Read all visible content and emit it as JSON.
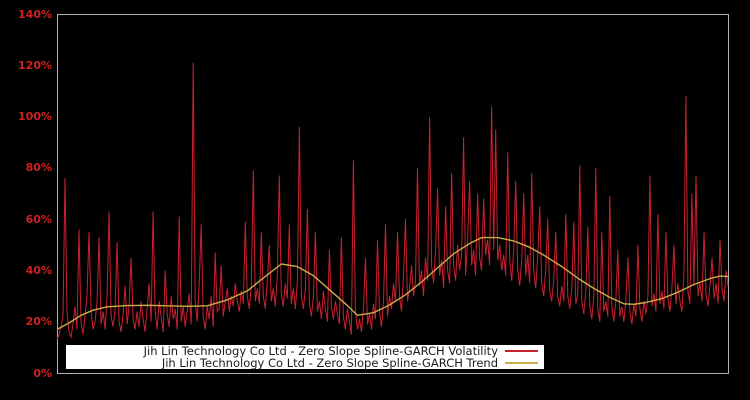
{
  "figure": {
    "background_color": "#000000",
    "frame_color": "#b0b0b0",
    "title": ""
  },
  "y_axis": {
    "tick_labels": [
      "0%",
      "20%",
      "40%",
      "60%",
      "80%",
      "100%",
      "120%",
      "140%"
    ],
    "tick_color": "#cc2222",
    "min": 0,
    "max": 140,
    "step": 20
  },
  "x_axis": {
    "tick_labels": []
  },
  "legend": {
    "background": "#ffffff",
    "items": [
      {
        "label": "Jih Lin Technology Co Ltd - Zero Slope Spline-GARCH Volatility",
        "color": "#cb2030"
      },
      {
        "label": "Jih Lin Technology Co Ltd - Zero Slope Spline-GARCH Trend",
        "color": "#c8ad49"
      }
    ]
  },
  "chart_data": {
    "type": "line",
    "title": "",
    "xlabel": "",
    "ylabel": "",
    "ylim": [
      0,
      140
    ],
    "y_tick_step": 20,
    "grid": false,
    "legend_position": "lower center",
    "series": [
      {
        "name": "Jih Lin Technology Co Ltd - Zero Slope Spline-GARCH Volatility",
        "color": "#cb2030",
        "unit": "%",
        "values": [
          13,
          15,
          18,
          22,
          76,
          24,
          16,
          14,
          19,
          26,
          17,
          56,
          20,
          15,
          22,
          30,
          55,
          24,
          17,
          20,
          28,
          53,
          19,
          24,
          17,
          30,
          63,
          22,
          18,
          25,
          51,
          20,
          16,
          23,
          34,
          19,
          26,
          45,
          21,
          17,
          24,
          18,
          28,
          21,
          16,
          25,
          35,
          20,
          63,
          24,
          17,
          28,
          22,
          16,
          40,
          23,
          18,
          30,
          21,
          25,
          17,
          61,
          20,
          26,
          18,
          24,
          31,
          19,
          121,
          28,
          20,
          35,
          58,
          22,
          17,
          26,
          21,
          30,
          18,
          47,
          24,
          25,
          42,
          22,
          28,
          33,
          24,
          30,
          26,
          35,
          28,
          24,
          32,
          27,
          59,
          30,
          25,
          34,
          79,
          28,
          33,
          27,
          55,
          30,
          25,
          36,
          50,
          28,
          33,
          26,
          38,
          77,
          31,
          26,
          35,
          29,
          58,
          27,
          33,
          25,
          36,
          96,
          30,
          25,
          33,
          64,
          27,
          22,
          30,
          55,
          24,
          28,
          21,
          32,
          25,
          20,
          48,
          26,
          21,
          28,
          23,
          19,
          53,
          22,
          17,
          25,
          20,
          15,
          83,
          24,
          17,
          21,
          16,
          26,
          45,
          19,
          23,
          17,
          27,
          21,
          52,
          24,
          18,
          28,
          58,
          22,
          30,
          25,
          35,
          28,
          55,
          30,
          24,
          38,
          60,
          28,
          33,
          42,
          30,
          36,
          80,
          34,
          40,
          30,
          45,
          36,
          100,
          42,
          35,
          48,
          72,
          38,
          44,
          33,
          65,
          40,
          35,
          78,
          42,
          36,
          50,
          40,
          46,
          92,
          38,
          52,
          75,
          42,
          48,
          38,
          70,
          45,
          40,
          68,
          46,
          52,
          42,
          104,
          48,
          95,
          44,
          50,
          40,
          46,
          38,
          86,
          44,
          36,
          48,
          75,
          40,
          34,
          44,
          70,
          38,
          46,
          35,
          78,
          40,
          33,
          45,
          65,
          35,
          30,
          40,
          60,
          32,
          28,
          36,
          55,
          30,
          26,
          34,
          28,
          62,
          30,
          25,
          33,
          59,
          27,
          31,
          81,
          28,
          23,
          32,
          57,
          26,
          21,
          30,
          80,
          25,
          20,
          55,
          24,
          28,
          22,
          69,
          26,
          20,
          28,
          48,
          22,
          26,
          20,
          28,
          45,
          24,
          19,
          27,
          22,
          50,
          25,
          20,
          28,
          23,
          30,
          77,
          26,
          31,
          24,
          62,
          27,
          32,
          25,
          55,
          29,
          24,
          33,
          50,
          27,
          35,
          28,
          24,
          38,
          108,
          32,
          27,
          70,
          34,
          77,
          30,
          35,
          28,
          55,
          31,
          26,
          34,
          45,
          29,
          35,
          27,
          52,
          33,
          28,
          40,
          34
        ]
      },
      {
        "name": "Jih Lin Technology Co Ltd - Zero Slope Spline-GARCH Trend",
        "color": "#c8ad49",
        "unit": "%",
        "points": [
          [
            0,
            17
          ],
          [
            6,
            19.5
          ],
          [
            12,
            22.5
          ],
          [
            18,
            24.5
          ],
          [
            25,
            25.8
          ],
          [
            35,
            26.3
          ],
          [
            45,
            26.4
          ],
          [
            55,
            26.2
          ],
          [
            65,
            26
          ],
          [
            75,
            26.2
          ],
          [
            85,
            28.5
          ],
          [
            95,
            32
          ],
          [
            103,
            37
          ],
          [
            112,
            42.5
          ],
          [
            120,
            41.5
          ],
          [
            128,
            38
          ],
          [
            136,
            32.5
          ],
          [
            144,
            27
          ],
          [
            150,
            22.5
          ],
          [
            158,
            23.5
          ],
          [
            166,
            26.5
          ],
          [
            174,
            30.5
          ],
          [
            182,
            35.5
          ],
          [
            190,
            41
          ],
          [
            198,
            46.5
          ],
          [
            206,
            50.5
          ],
          [
            212,
            52.8
          ],
          [
            220,
            52.8
          ],
          [
            228,
            51.5
          ],
          [
            236,
            49
          ],
          [
            244,
            45.5
          ],
          [
            252,
            41.5
          ],
          [
            260,
            37
          ],
          [
            268,
            33
          ],
          [
            276,
            29.5
          ],
          [
            283,
            27
          ],
          [
            288,
            26.8
          ],
          [
            294,
            27.5
          ],
          [
            302,
            29
          ],
          [
            310,
            31.5
          ],
          [
            318,
            34.5
          ],
          [
            326,
            36.8
          ],
          [
            331,
            37.8
          ],
          [
            335,
            37.6
          ]
        ]
      }
    ]
  }
}
